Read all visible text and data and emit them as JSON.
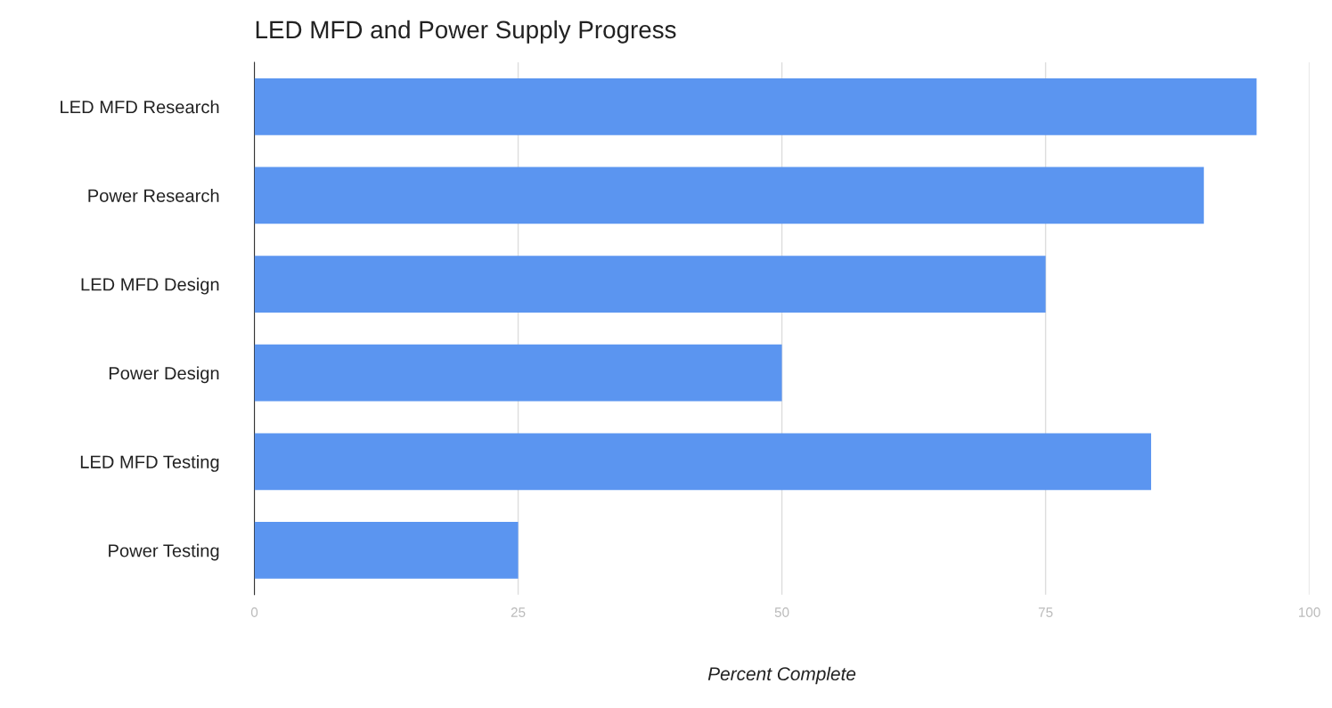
{
  "chart_data": {
    "type": "bar",
    "orientation": "horizontal",
    "title": "LED MFD and Power Supply Progress",
    "xlabel": "Percent Complete",
    "categories": [
      "LED MFD Research",
      "Power Research",
      "LED MFD Design",
      "Power Design",
      "LED MFD Testing",
      "Power Testing"
    ],
    "values": [
      95,
      90,
      75,
      50,
      85,
      25
    ],
    "color": "#5b95f0",
    "xlim": [
      0,
      100
    ],
    "xticks": [
      0,
      25,
      50,
      75,
      100
    ],
    "grid": "x",
    "legend": false
  }
}
